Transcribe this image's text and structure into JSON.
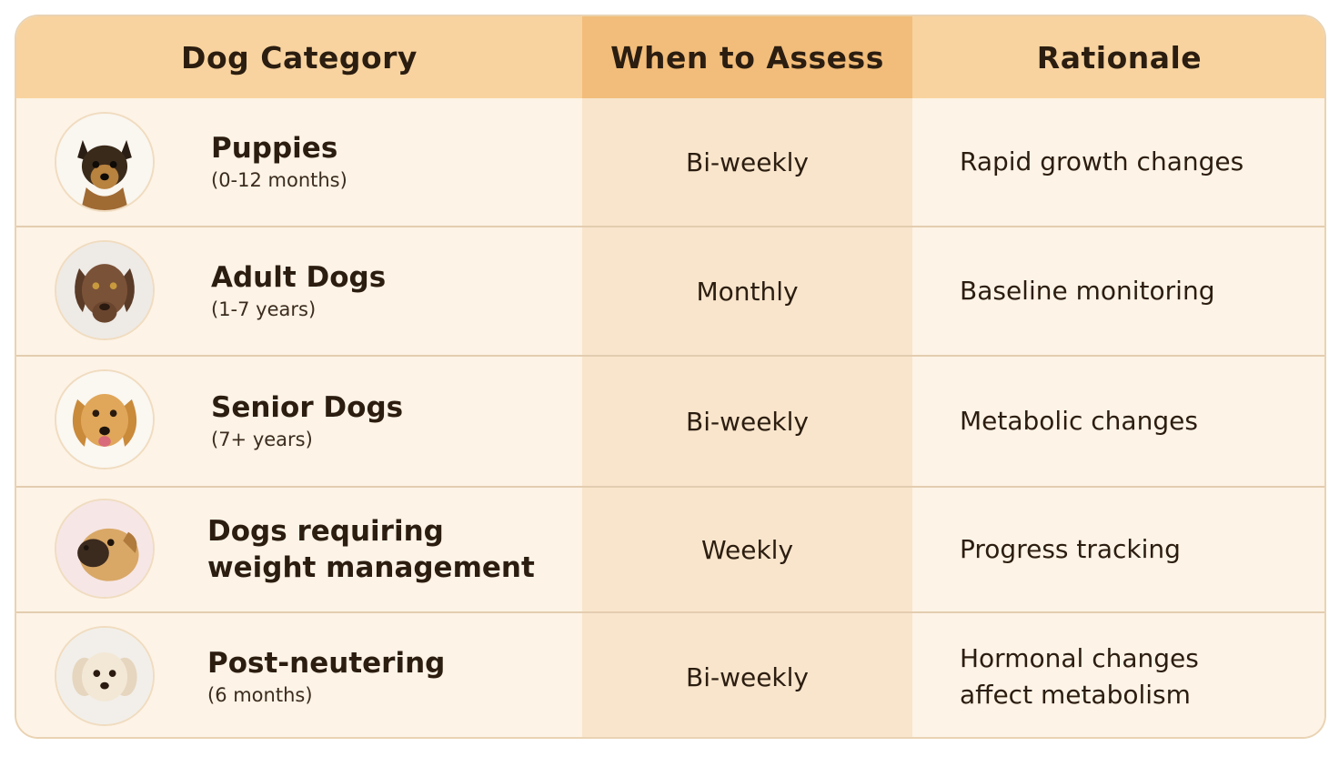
{
  "header": {
    "col_category": "Dog Category",
    "col_when": "When to Assess",
    "col_rationale": "Rationale"
  },
  "rows": [
    {
      "name": "Puppies",
      "sub": "(0-12 months)",
      "when": "Bi-weekly",
      "rationale": "Rapid growth changes",
      "icon": "puppy-photo-icon"
    },
    {
      "name": "Adult Dogs",
      "sub": "(1-7 years)",
      "when": "Monthly",
      "rationale": "Baseline monitoring",
      "icon": "adult-dog-photo-icon"
    },
    {
      "name": "Senior Dogs",
      "sub": "(7+ years)",
      "when": "Bi-weekly",
      "rationale": "Metabolic changes",
      "icon": "senior-dog-photo-icon"
    },
    {
      "name": "Dogs requiring\nweight management",
      "sub": "",
      "when": "Weekly",
      "rationale": "Progress tracking",
      "icon": "overweight-dog-photo-icon"
    },
    {
      "name": "Post-neutering",
      "sub": "(6 months)",
      "when": "Bi-weekly",
      "rationale": "Hormonal changes\naffect metabolism",
      "icon": "post-neuter-dog-photo-icon"
    }
  ],
  "colors": {
    "header_light": "#f8d39f",
    "header_dark": "#f2bd7a",
    "row_light": "#fdf3e6",
    "row_mid": "#f9e5cc",
    "text": "#2b1d10"
  }
}
